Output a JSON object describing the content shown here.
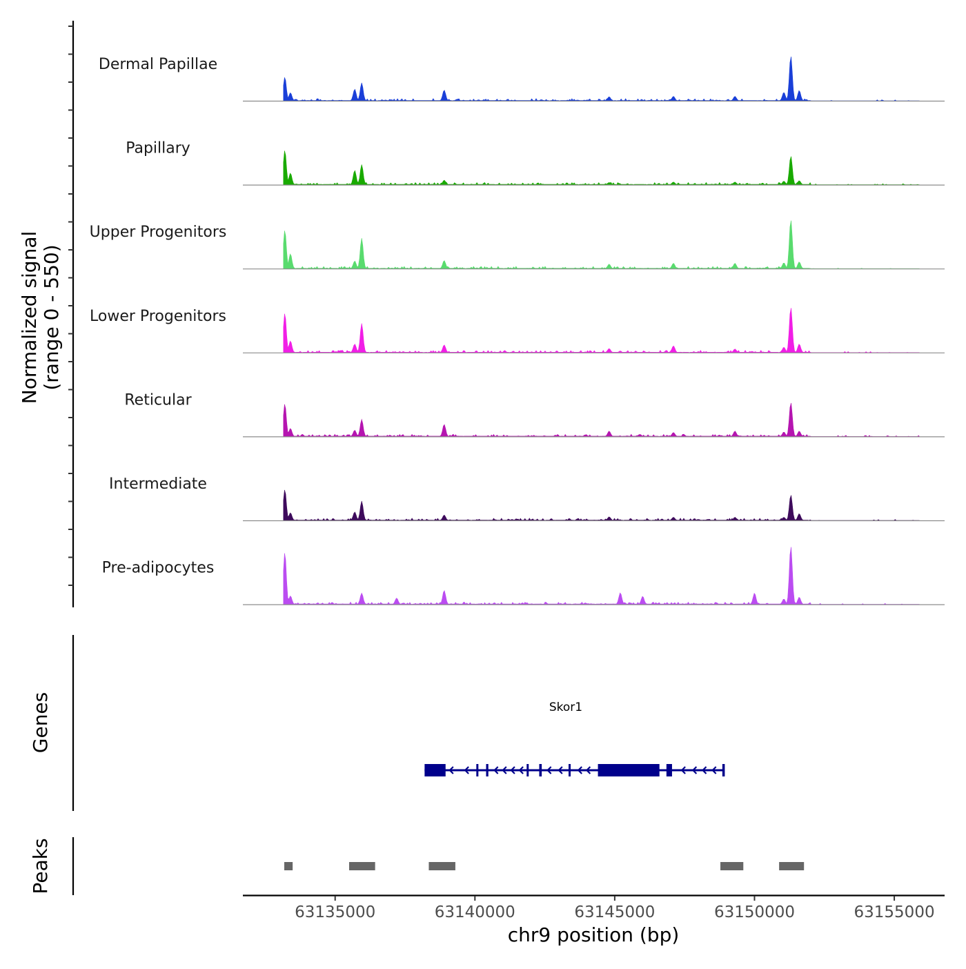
{
  "chart_data": {
    "type": "area",
    "chromosome": "chr9",
    "xlabel": "chr9 position (bp)",
    "xlim": [
      63131700,
      63156800
    ],
    "x_ticks": [
      63135000,
      63140000,
      63145000,
      63150000,
      63155000
    ],
    "x_tick_labels": [
      "63135000",
      "63140000",
      "63145000",
      "63150000",
      "63155000"
    ],
    "signal_axis_title_line1": "Normalized signal",
    "signal_axis_title_line2": "(range 0 - 550)",
    "ylim": [
      0,
      550
    ],
    "tracks": [
      {
        "name": "Dermal Papillae",
        "color": "#1A3FD8",
        "peaks": [
          [
            63133200,
            0.53
          ],
          [
            63133400,
            0.18
          ],
          [
            63135700,
            0.26
          ],
          [
            63135950,
            0.4
          ],
          [
            63138900,
            0.24
          ],
          [
            63151300,
            1.0
          ],
          [
            63151050,
            0.19
          ],
          [
            63151600,
            0.23
          ],
          [
            63144800,
            0.09
          ],
          [
            63147100,
            0.1
          ],
          [
            63149300,
            0.1
          ]
        ]
      },
      {
        "name": "Papillary",
        "color": "#19AA00",
        "peaks": [
          [
            63133200,
            0.77
          ],
          [
            63133400,
            0.26
          ],
          [
            63135700,
            0.32
          ],
          [
            63135950,
            0.45
          ],
          [
            63138900,
            0.1
          ],
          [
            63151300,
            0.64
          ],
          [
            63151050,
            0.08
          ],
          [
            63151600,
            0.09
          ],
          [
            63144800,
            0.05
          ],
          [
            63147100,
            0.06
          ],
          [
            63149300,
            0.06
          ]
        ]
      },
      {
        "name": "Upper Progenitors",
        "color": "#59DB6E",
        "peaks": [
          [
            63133200,
            0.86
          ],
          [
            63133400,
            0.33
          ],
          [
            63135700,
            0.17
          ],
          [
            63135950,
            0.68
          ],
          [
            63138900,
            0.18
          ],
          [
            63151300,
            1.09
          ],
          [
            63151050,
            0.13
          ],
          [
            63151600,
            0.15
          ],
          [
            63144800,
            0.1
          ],
          [
            63147100,
            0.12
          ],
          [
            63149300,
            0.12
          ]
        ]
      },
      {
        "name": "Lower Progenitors",
        "color": "#F11EE6",
        "peaks": [
          [
            63133200,
            0.88
          ],
          [
            63133400,
            0.26
          ],
          [
            63135700,
            0.19
          ],
          [
            63135950,
            0.65
          ],
          [
            63138900,
            0.17
          ],
          [
            63151300,
            1.01
          ],
          [
            63151050,
            0.12
          ],
          [
            63151600,
            0.19
          ],
          [
            63144800,
            0.09
          ],
          [
            63147100,
            0.15
          ],
          [
            63149300,
            0.08
          ]
        ]
      },
      {
        "name": "Reticular",
        "color": "#B515B0",
        "peaks": [
          [
            63133200,
            0.73
          ],
          [
            63133400,
            0.18
          ],
          [
            63135700,
            0.14
          ],
          [
            63135950,
            0.38
          ],
          [
            63138900,
            0.27
          ],
          [
            63151300,
            0.76
          ],
          [
            63151050,
            0.1
          ],
          [
            63151600,
            0.12
          ],
          [
            63144800,
            0.12
          ],
          [
            63147100,
            0.09
          ],
          [
            63149300,
            0.12
          ]
        ]
      },
      {
        "name": "Intermediate",
        "color": "#3E0B5C",
        "peaks": [
          [
            63133200,
            0.69
          ],
          [
            63133400,
            0.17
          ],
          [
            63135700,
            0.19
          ],
          [
            63135950,
            0.43
          ],
          [
            63138900,
            0.12
          ],
          [
            63151300,
            0.57
          ],
          [
            63151050,
            0.07
          ],
          [
            63151600,
            0.15
          ],
          [
            63144800,
            0.08
          ],
          [
            63147100,
            0.07
          ],
          [
            63149300,
            0.07
          ]
        ]
      },
      {
        "name": "Pre-adipocytes",
        "color": "#BB4CF1",
        "peaks": [
          [
            63133200,
            1.16
          ],
          [
            63133400,
            0.19
          ],
          [
            63135950,
            0.25
          ],
          [
            63138900,
            0.31
          ],
          [
            63145200,
            0.26
          ],
          [
            63150000,
            0.25
          ],
          [
            63151300,
            1.3
          ],
          [
            63151050,
            0.12
          ],
          [
            63151600,
            0.16
          ],
          [
            63137200,
            0.14
          ],
          [
            63146000,
            0.18
          ]
        ]
      }
    ],
    "genes_axis_title": "Genes",
    "gene": {
      "name": "Skor1",
      "strand": "-",
      "start": 63138200,
      "end": 63148900,
      "color": "#00008B",
      "exons": [
        [
          63138200,
          63138950
        ],
        [
          63140050,
          63140120
        ],
        [
          63140400,
          63140480
        ],
        [
          63141850,
          63141920
        ],
        [
          63142300,
          63142390
        ],
        [
          63143350,
          63143420
        ],
        [
          63144400,
          63146600
        ],
        [
          63146850,
          63147050
        ],
        [
          63148850,
          63148900
        ]
      ]
    },
    "peaks_axis_title": "Peaks",
    "peak_regions": [
      [
        63133180,
        63133480
      ],
      [
        63135500,
        63136430
      ],
      [
        63138350,
        63139300
      ],
      [
        63148780,
        63149600
      ],
      [
        63150880,
        63151770
      ]
    ],
    "peak_color": "#666666"
  }
}
